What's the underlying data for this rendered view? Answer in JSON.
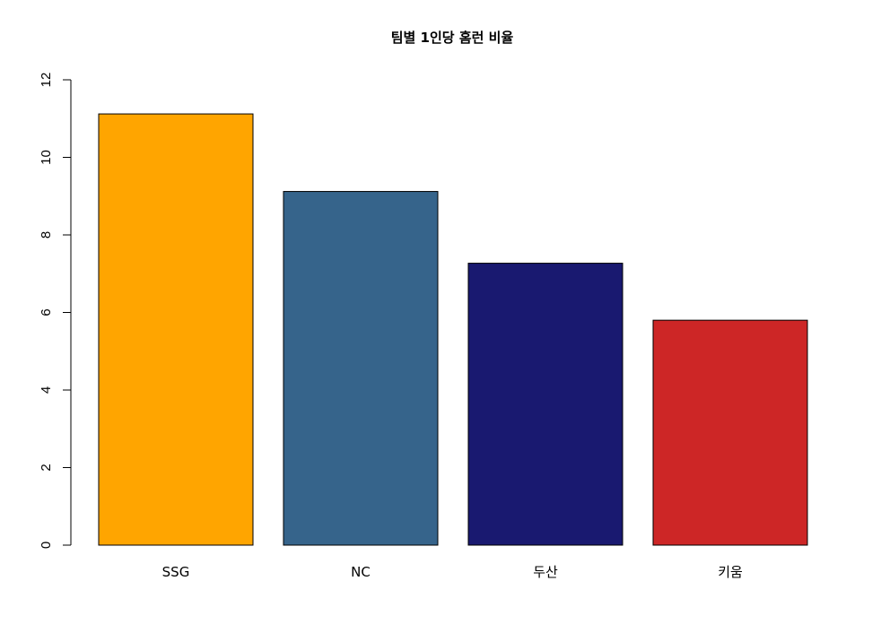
{
  "chart_data": {
    "type": "bar",
    "title": "팀별 1인당 홈런 비율",
    "xlabel": "",
    "ylabel": "",
    "categories": [
      "SSG",
      "NC",
      "두산",
      "키움"
    ],
    "values": [
      11.12,
      9.12,
      7.27,
      5.8
    ],
    "colors": [
      "#FFA500",
      "#36648B",
      "#191970",
      "#CD2626"
    ],
    "ylim": [
      0,
      12
    ],
    "yticks": [
      0,
      2,
      4,
      6,
      8,
      10,
      12
    ],
    "ytick_labels": [
      "0",
      "2",
      "4",
      "6",
      "8",
      "10",
      "12"
    ],
    "grid": false,
    "legend": "none"
  }
}
